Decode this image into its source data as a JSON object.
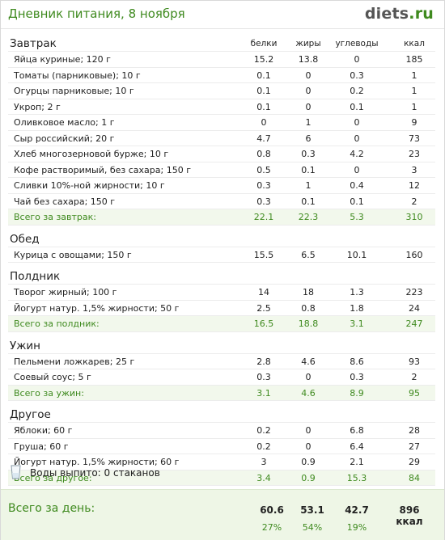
{
  "header": {
    "title": "Дневник питания, 8 ноября",
    "logo_main": "diets",
    "logo_dot": ".",
    "logo_tld": "ru"
  },
  "columns": [
    "белки",
    "жиры",
    "углеводы",
    "ккал"
  ],
  "meals": [
    {
      "name": "Завтрак",
      "items": [
        {
          "name": "Яйца куриные; 120 г",
          "p": "15.2",
          "f": "13.8",
          "c": "0",
          "k": "185"
        },
        {
          "name": "Томаты (парниковые); 10 г",
          "p": "0.1",
          "f": "0",
          "c": "0.3",
          "k": "1"
        },
        {
          "name": "Огурцы парниковые; 10 г",
          "p": "0.1",
          "f": "0",
          "c": "0.2",
          "k": "1"
        },
        {
          "name": "Укроп; 2 г",
          "p": "0.1",
          "f": "0",
          "c": "0.1",
          "k": "1"
        },
        {
          "name": "Оливковое масло; 1 г",
          "p": "0",
          "f": "1",
          "c": "0",
          "k": "9"
        },
        {
          "name": "Сыр российский; 20 г",
          "p": "4.7",
          "f": "6",
          "c": "0",
          "k": "73"
        },
        {
          "name": "Хлеб многозерновой бурже; 10 г",
          "p": "0.8",
          "f": "0.3",
          "c": "4.2",
          "k": "23"
        },
        {
          "name": "Кофе растворимый, без сахара; 150 г",
          "p": "0.5",
          "f": "0.1",
          "c": "0",
          "k": "3"
        },
        {
          "name": "Сливки 10%-ной жирности; 10 г",
          "p": "0.3",
          "f": "1",
          "c": "0.4",
          "k": "12"
        },
        {
          "name": "Чай без сахара; 150 г",
          "p": "0.3",
          "f": "0.1",
          "c": "0.1",
          "k": "2"
        }
      ],
      "total": {
        "name": "Всего за завтрак:",
        "p": "22.1",
        "f": "22.3",
        "c": "5.3",
        "k": "310"
      }
    },
    {
      "name": "Обед",
      "items": [
        {
          "name": "Курица с овощами; 150 г",
          "p": "15.5",
          "f": "6.5",
          "c": "10.1",
          "k": "160"
        }
      ]
    },
    {
      "name": "Полдник",
      "items": [
        {
          "name": "Творог жирный; 100 г",
          "p": "14",
          "f": "18",
          "c": "1.3",
          "k": "223"
        },
        {
          "name": "Йогурт натур. 1,5% жирности; 50 г",
          "p": "2.5",
          "f": "0.8",
          "c": "1.8",
          "k": "24"
        }
      ],
      "total": {
        "name": "Всего за полдник:",
        "p": "16.5",
        "f": "18.8",
        "c": "3.1",
        "k": "247"
      }
    },
    {
      "name": "Ужин",
      "items": [
        {
          "name": "Пельмени ложкарев; 25 г",
          "p": "2.8",
          "f": "4.6",
          "c": "8.6",
          "k": "93"
        },
        {
          "name": "Соевый соус; 5 г",
          "p": "0.3",
          "f": "0",
          "c": "0.3",
          "k": "2"
        }
      ],
      "total": {
        "name": "Всего за ужин:",
        "p": "3.1",
        "f": "4.6",
        "c": "8.9",
        "k": "95"
      }
    },
    {
      "name": "Другое",
      "items": [
        {
          "name": "Яблоки; 60 г",
          "p": "0.2",
          "f": "0",
          "c": "6.8",
          "k": "28"
        },
        {
          "name": "Груша; 60 г",
          "p": "0.2",
          "f": "0",
          "c": "6.4",
          "k": "27"
        },
        {
          "name": "Йогурт натур. 1,5% жирности; 60 г",
          "p": "3",
          "f": "0.9",
          "c": "2.1",
          "k": "29"
        }
      ],
      "total": {
        "name": "Всего за другое:",
        "p": "3.4",
        "f": "0.9",
        "c": "15.3",
        "k": "84"
      }
    }
  ],
  "water": {
    "icon": "glass-icon",
    "label": "Воды выпито: 0 стаканов"
  },
  "day_total": {
    "label": "Всего за день:",
    "protein": "60.6",
    "fat": "53.1",
    "carbs": "42.7",
    "kcal": "896 ккал",
    "protein_pct": "27%",
    "fat_pct": "54%",
    "carbs_pct": "19%"
  },
  "colors": {
    "accent": "#3f8a1f",
    "subtotal_bg": "#f2f8ec",
    "day_bg": "#eef6e6"
  }
}
